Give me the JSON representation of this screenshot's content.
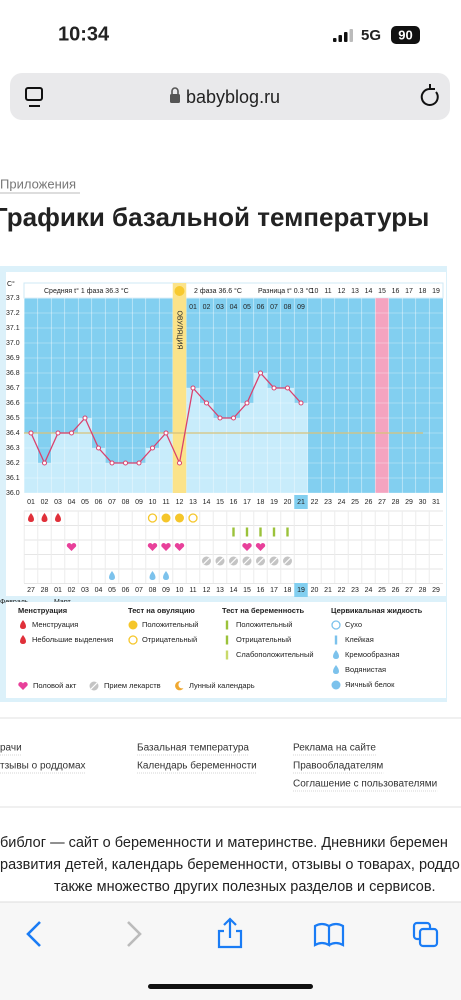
{
  "status_bar": {
    "time": "10:34",
    "network": "5G",
    "battery": "90"
  },
  "address_bar": {
    "url": "babyblog.ru"
  },
  "breadcrumb": "Приложения",
  "title": "Графики базальной температуры",
  "chart": {
    "y_unit": "C°",
    "phase1_label": "Средняя t° 1 фаза 36.3 °C",
    "phase2_label": "2 фаза 36.6 °C",
    "diff_label": "Разница t° 0.3 °C",
    "ovulation_label": "ОВУЛЯЦИЯ",
    "ylim": [
      36.0,
      37.3
    ],
    "yticks": [
      {
        "value": 36.0,
        "label": "36.0"
      },
      36.1,
      36.2,
      36.3,
      36.4,
      36.5,
      36.6,
      36.7,
      36.8,
      36.9,
      {
        "value": 37.0,
        "label": "37.0"
      },
      37.1,
      37.2,
      37.3
    ],
    "days": [
      "01",
      "02",
      "03",
      "04",
      "05",
      "06",
      "07",
      "08",
      "09",
      "10",
      "11",
      "12",
      "13",
      "14",
      "15",
      "16",
      "17",
      "18",
      "19",
      "20",
      "21",
      "22",
      "23",
      "24",
      "25",
      "26",
      "27",
      "28",
      "29",
      "30",
      "31"
    ],
    "dpo": [
      "01",
      "02",
      "03",
      "04",
      "05",
      "06",
      "07",
      "08",
      "09",
      "10",
      "11",
      "12",
      "13",
      "14",
      "15",
      "16",
      "17",
      "18",
      "19"
    ],
    "temperatures": [
      36.4,
      36.2,
      36.4,
      36.4,
      36.5,
      36.3,
      36.2,
      36.2,
      36.2,
      36.3,
      36.4,
      36.2,
      36.7,
      36.6,
      36.5,
      36.5,
      36.6,
      36.8,
      36.7,
      36.7,
      36.6,
      null,
      null,
      null,
      null,
      null,
      null,
      null,
      null,
      null,
      null
    ],
    "cover_line": 36.4,
    "ovulation_day": 12,
    "expected_period_day": 27,
    "today_day": 21,
    "dates": [
      "27",
      "28",
      "01",
      "02",
      "03",
      "04",
      "05",
      "06",
      "07",
      "08",
      "09",
      "10",
      "11",
      "12",
      "13",
      "14",
      "15",
      "16",
      "17",
      "18",
      "19",
      "20",
      "21",
      "22",
      "23",
      "24",
      "25",
      "26",
      "27",
      "28",
      "29"
    ],
    "months": [
      "Февраль",
      "Март"
    ],
    "markers": {
      "menstruation": [
        1,
        2,
        3
      ],
      "ovulation_negative": [
        10,
        13
      ],
      "ovulation_positive": [
        11,
        12
      ],
      "pregnancy_negative": [
        16,
        17,
        18,
        19,
        20
      ],
      "sex": [
        4,
        10,
        11,
        12,
        17,
        18
      ],
      "medication": [
        14,
        15,
        16,
        17,
        18,
        19,
        20
      ],
      "cervical_watery": [
        7
      ],
      "cervical_egg_white": [
        10,
        11
      ]
    }
  },
  "legend": {
    "groups": [
      {
        "title": "Менструация",
        "items": [
          "Менструация",
          "Небольшие выделения"
        ]
      },
      {
        "title": "Тест на овуляцию",
        "items": [
          "Положительный",
          "Отрицательный"
        ]
      },
      {
        "title": "Тест на беременность",
        "items": [
          "Положительный",
          "Отрицательный",
          "Слабоположительный"
        ]
      },
      {
        "title": "Цервикальная жидкость",
        "items": [
          "Сухо",
          "Клейкая",
          "Кремообразная",
          "Водянистая",
          "Яичный белок"
        ]
      }
    ],
    "other": [
      "Половой акт",
      "Прием лекарств",
      "Лунный календарь"
    ]
  },
  "footer_links": [
    [
      "рачи",
      "тзывы о роддомах"
    ],
    [
      "Базальная температура",
      "Календарь беременности"
    ],
    [
      "Реклама на сайте",
      "Правообладателям",
      "Соглашение с пользователями"
    ]
  ],
  "description": [
    "библог — сайт о беременности и материнстве. Дневники беремен",
    "развития детей, календарь беременности, отзывы о товарах, роддо",
    "также множество других полезных разделов и сервисов."
  ]
}
